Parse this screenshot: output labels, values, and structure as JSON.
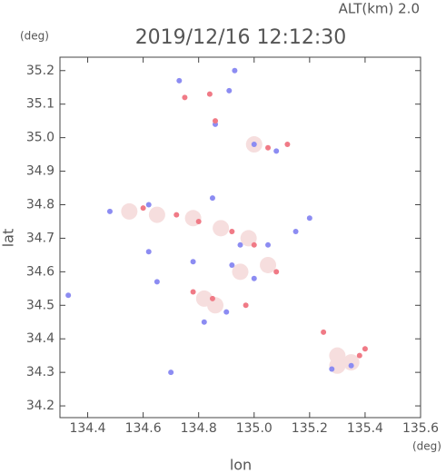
{
  "chart_data": {
    "type": "scatter",
    "title": "2019/12/16 12:12:30",
    "subtitle": "ALT(km) 2.0",
    "x_label": "lon",
    "y_label": "lat",
    "x_unit": "(deg)",
    "y_unit": "(deg)",
    "xlim": [
      134.3,
      135.6
    ],
    "ylim": [
      34.165,
      35.24
    ],
    "xticks": [
      {
        "value": 134.4,
        "label": "134.4"
      },
      {
        "value": 134.6,
        "label": "134.6"
      },
      {
        "value": 134.8,
        "label": "134.8"
      },
      {
        "value": 135.0,
        "label": "135.0"
      },
      {
        "value": 135.2,
        "label": "135.2"
      },
      {
        "value": 135.4,
        "label": "135.4"
      },
      {
        "value": 135.6,
        "label": "135.6"
      }
    ],
    "yticks": [
      {
        "value": 34.2,
        "label": "34.2"
      },
      34.3,
      34.4,
      34.5,
      34.6,
      34.7,
      34.8,
      34.9,
      {
        "value": 35.0,
        "label": "35.0"
      },
      35.1,
      35.2
    ],
    "series": [
      {
        "color": "#f6dede",
        "size": 9,
        "x": [
          134.55,
          134.65,
          134.78,
          134.88,
          134.98,
          135.05,
          134.82,
          134.86,
          135.3,
          135.35,
          135.3,
          135.0,
          134.95
        ],
        "y": [
          34.78,
          34.77,
          34.76,
          34.73,
          34.7,
          34.62,
          34.52,
          34.5,
          34.35,
          34.33,
          34.32,
          34.98,
          34.6
        ]
      },
      {
        "color": "#8c8cf2",
        "size": 3,
        "x": [
          134.73,
          134.91,
          134.93,
          134.86,
          135.0,
          135.08,
          134.48,
          134.62,
          134.85,
          134.95,
          135.05,
          135.2,
          135.15,
          134.92,
          135.0,
          134.9,
          134.82,
          135.28,
          135.35,
          134.33,
          134.7,
          134.62,
          134.65,
          134.78
        ],
        "y": [
          35.17,
          35.14,
          35.2,
          35.04,
          34.98,
          34.96,
          34.78,
          34.8,
          34.82,
          34.68,
          34.68,
          34.76,
          34.72,
          34.62,
          34.58,
          34.48,
          34.45,
          34.31,
          34.32,
          34.53,
          34.3,
          34.66,
          34.57,
          34.63
        ]
      },
      {
        "color": "#f07a86",
        "size": 3,
        "x": [
          134.84,
          134.75,
          134.86,
          135.05,
          135.12,
          134.6,
          134.72,
          134.8,
          135.0,
          135.08,
          134.78,
          134.85,
          135.25,
          135.4,
          135.38,
          134.92,
          134.97
        ],
        "y": [
          35.13,
          35.12,
          35.05,
          34.97,
          34.98,
          34.79,
          34.77,
          34.75,
          34.68,
          34.6,
          34.54,
          34.52,
          34.42,
          34.37,
          34.35,
          34.72,
          34.5
        ]
      }
    ]
  }
}
